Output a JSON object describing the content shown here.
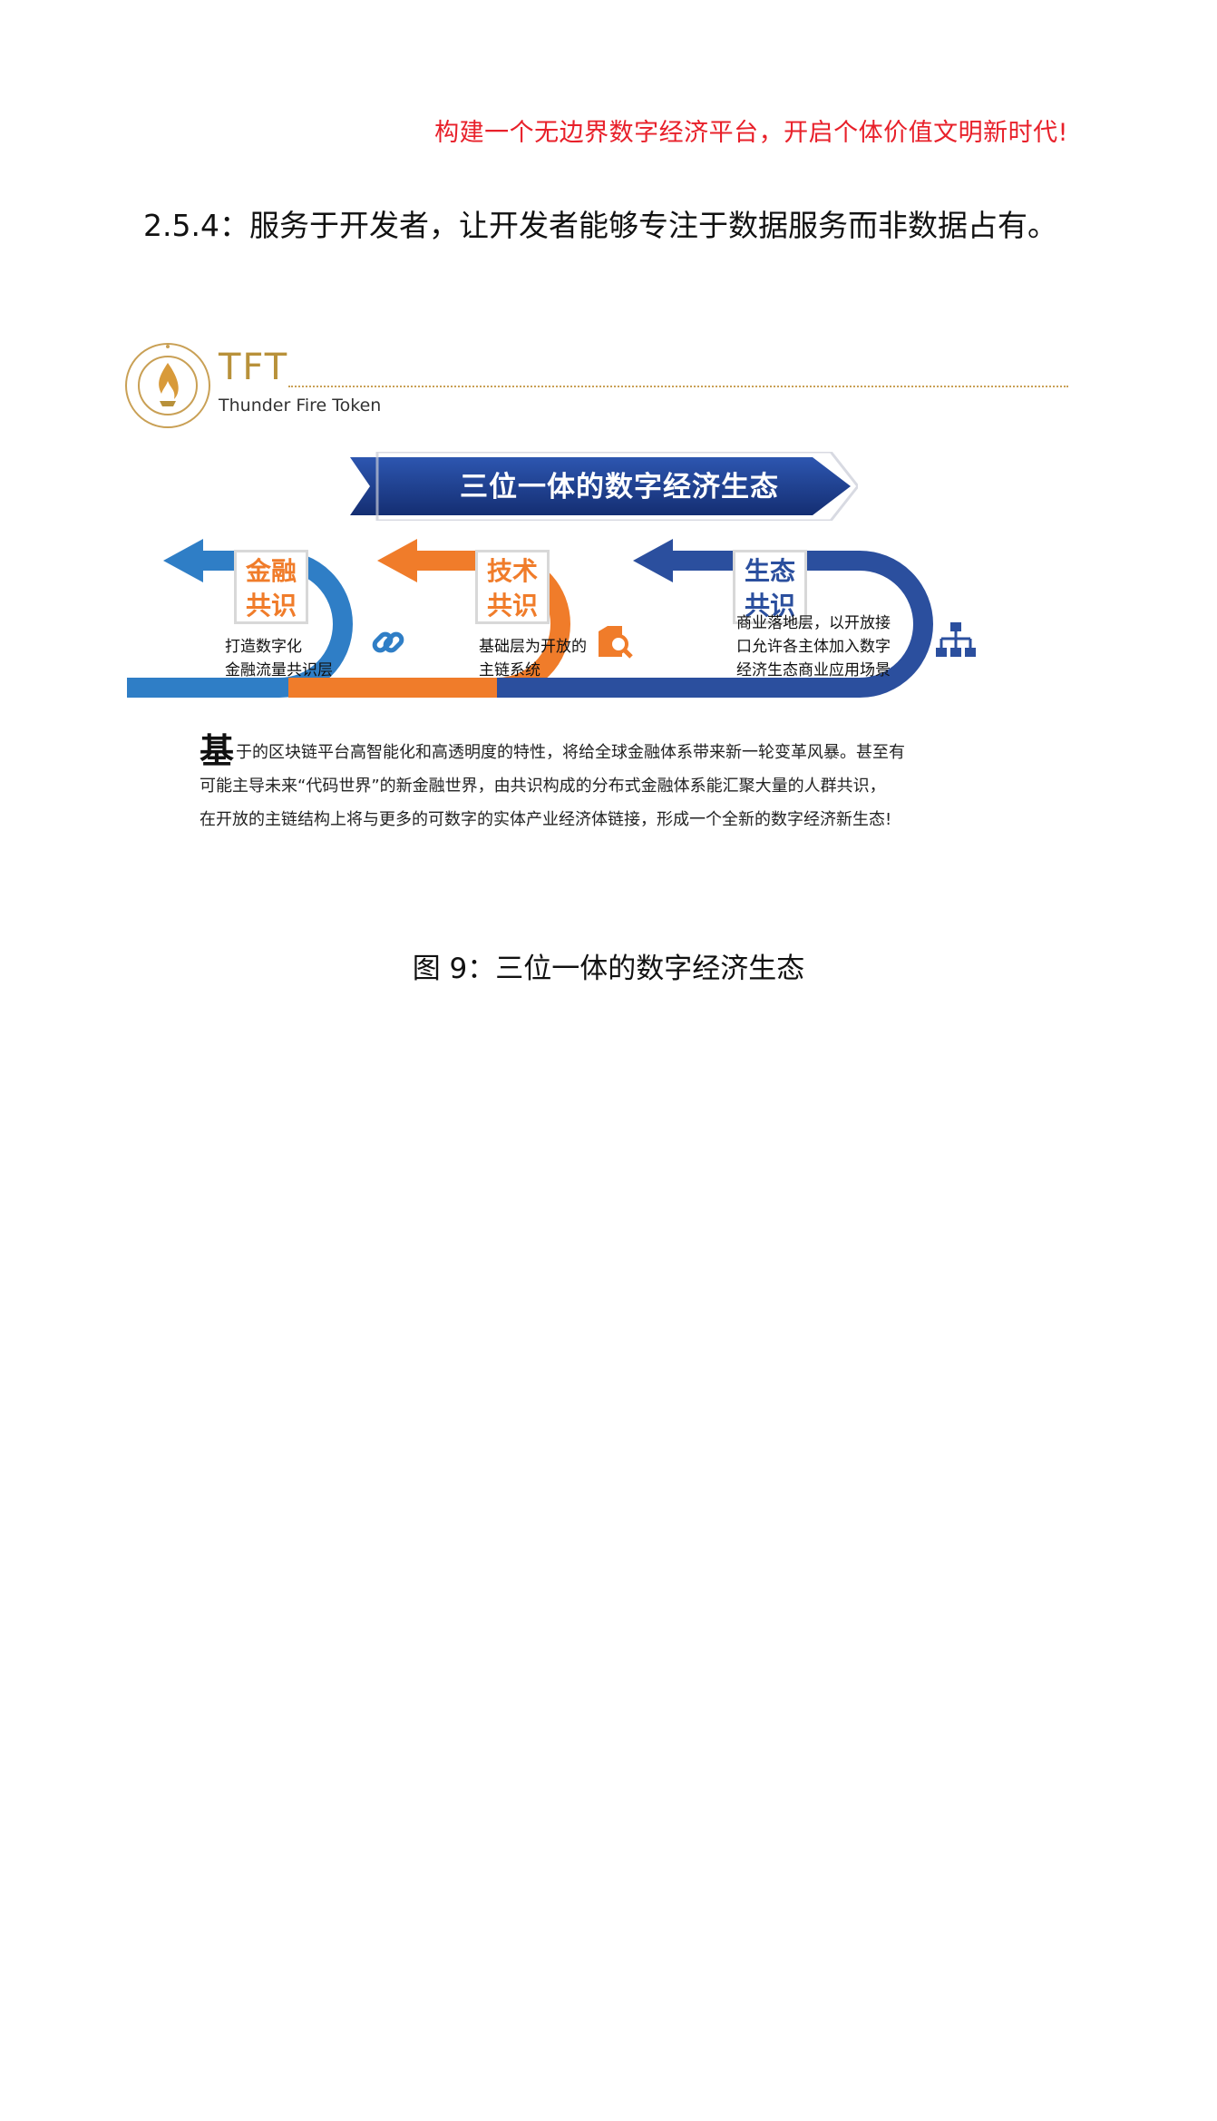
{
  "slogan": "构建一个无边界数字经济平台，开启个体价值文明新时代!",
  "heading": "2.5.4：服务于开发者，让开发者能够专注于数据服务而非数据占有。",
  "figure": {
    "logo": {
      "title": "TFT",
      "subtitle": "Thunder Fire Token",
      "ring_text": "Thunder Fire Token"
    },
    "banner": "三位一体的数字经济生态",
    "colors": {
      "finance": "#2f7ec6",
      "tech": "#f07c2a",
      "eco": "#2b4f9e",
      "banner": "#1b3c8c",
      "gold": "#b8913a"
    },
    "sections": [
      {
        "title_line1": "金融",
        "title_line2": "共识",
        "desc_line1": "打造数字化",
        "desc_line2": "金融流量共识层",
        "icon": "link-icon"
      },
      {
        "title_line1": "技术",
        "title_line2": "共识",
        "desc_line1": "基础层为开放的",
        "desc_line2": "主链系统",
        "icon": "search-box-icon"
      },
      {
        "title_line1": "生态",
        "title_line2": "共识",
        "desc_line1": "商业落地层，以开放接",
        "desc_line2": "口允许各主体加入数字",
        "desc_line3": "经济生态商业应用场景",
        "icon": "hierarchy-icon"
      }
    ],
    "paragraph": {
      "first_char": "基",
      "line1": "于的区块链平台高智能化和高透明度的特性，将给全球金融体系带来新一轮变革风暴。甚至有",
      "line2": "可能主导未来“代码世界”的新金融世界，由共识构成的分布式金融体系能汇聚大量的人群共识，",
      "line3": "在开放的主链结构上将与更多的可数字的实体产业经济体链接，形成一个全新的数字经济新生态!"
    }
  },
  "caption": "图 9：三位一体的数字经济生态"
}
